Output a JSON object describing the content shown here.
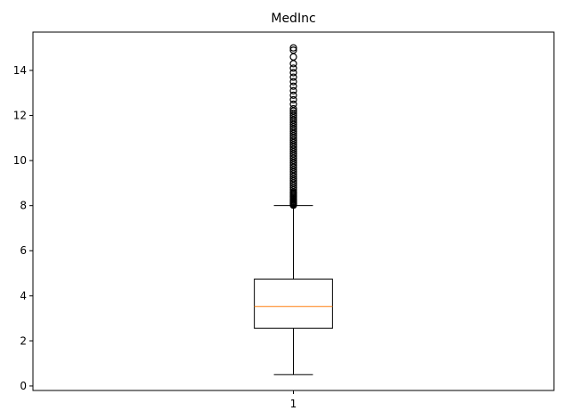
{
  "chart_data": {
    "type": "boxplot",
    "title": "MedInc",
    "xlabel": "",
    "ylabel": "",
    "categories": [
      "1"
    ],
    "ylim": [
      -0.2,
      15.7
    ],
    "yticks": [
      0,
      2,
      4,
      6,
      8,
      10,
      12,
      14
    ],
    "ytick_labels": [
      "0",
      "2",
      "4",
      "6",
      "8",
      "10",
      "12",
      "14"
    ],
    "boxes": [
      {
        "label": "1",
        "whisker_low": 0.5,
        "q1": 2.56,
        "median": 3.53,
        "q3": 4.74,
        "whisker_high": 8.0,
        "outliers": [
          8.02,
          8.05,
          8.08,
          8.1,
          8.13,
          8.16,
          8.2,
          8.25,
          8.3,
          8.35,
          8.4,
          8.45,
          8.5,
          8.55,
          8.6,
          8.7,
          8.8,
          8.9,
          9.0,
          9.1,
          9.2,
          9.3,
          9.4,
          9.5,
          9.6,
          9.7,
          9.8,
          9.9,
          10.0,
          10.1,
          10.2,
          10.3,
          10.4,
          10.5,
          10.6,
          10.7,
          10.8,
          10.9,
          11.0,
          11.1,
          11.2,
          11.3,
          11.4,
          11.5,
          11.6,
          11.7,
          11.8,
          11.9,
          12.0,
          12.1,
          12.2,
          12.3,
          12.5,
          12.7,
          12.9,
          13.1,
          13.3,
          13.5,
          13.7,
          13.9,
          14.1,
          14.3,
          14.6,
          14.9,
          15.0
        ]
      }
    ],
    "colors": {
      "box": "#000000",
      "median": "#ff7f0e",
      "outlier": "#000000"
    },
    "grid": false
  }
}
